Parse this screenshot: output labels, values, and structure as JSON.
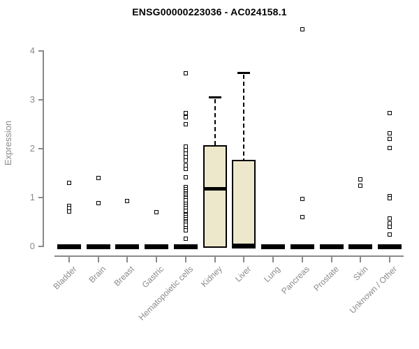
{
  "chart_data": {
    "type": "boxplot",
    "title": "ENSG00000223036 - AC024158.1",
    "ylabel": "Expression",
    "xlabel": "",
    "ylim": [
      0,
      4.6
    ],
    "yticks": [
      0,
      1,
      2,
      3,
      4
    ],
    "grid": false,
    "legend": "none",
    "categories": [
      "Bladder",
      "Brain",
      "Breast",
      "Gastric",
      "Hematopoietic cells",
      "Kidney",
      "Liver",
      "Lung",
      "Pancreas",
      "Prostate",
      "Skin",
      "Unknown / Other"
    ],
    "series": [
      {
        "category": "Bladder",
        "q1": 0,
        "median": 0,
        "q3": 0,
        "whisker_low": 0,
        "whisker_high": 0,
        "outliers": [
          1.3,
          0.83,
          0.78,
          0.72
        ]
      },
      {
        "category": "Brain",
        "q1": 0,
        "median": 0,
        "q3": 0,
        "whisker_low": 0,
        "whisker_high": 0,
        "outliers": [
          1.4,
          0.88
        ]
      },
      {
        "category": "Breast",
        "q1": 0,
        "median": 0,
        "q3": 0,
        "whisker_low": 0,
        "whisker_high": 0,
        "outliers": [
          0.93
        ]
      },
      {
        "category": "Gastric",
        "q1": 0,
        "median": 0,
        "q3": 0,
        "whisker_low": 0,
        "whisker_high": 0,
        "outliers": [
          0.7
        ]
      },
      {
        "category": "Hematopoietic cells",
        "q1": 0,
        "median": 0,
        "q3": 0,
        "whisker_low": 0,
        "whisker_high": 0,
        "outliers": [
          3.54,
          2.73,
          2.64,
          2.5,
          2.04,
          1.97,
          1.9,
          1.83,
          1.76,
          1.66,
          1.59,
          1.41,
          1.21,
          1.17,
          1.13,
          1.09,
          1.06,
          1.02,
          0.98,
          0.94,
          0.87,
          0.83,
          0.79,
          0.73,
          0.64,
          0.6,
          0.56,
          0.52,
          0.48,
          0.44,
          0.37,
          0.33,
          0.16
        ]
      },
      {
        "category": "Kidney",
        "q1": 0,
        "median": 1.19,
        "q3": 2.07,
        "whisker_low": 0,
        "whisker_high": 3.06,
        "outliers": []
      },
      {
        "category": "Liver",
        "q1": 0,
        "median": 0.02,
        "q3": 1.77,
        "whisker_low": 0,
        "whisker_high": 3.56,
        "outliers": []
      },
      {
        "category": "Lung",
        "q1": 0,
        "median": 0,
        "q3": 0,
        "whisker_low": 0,
        "whisker_high": 0,
        "outliers": []
      },
      {
        "category": "Pancreas",
        "q1": 0,
        "median": 0,
        "q3": 0,
        "whisker_low": 0,
        "whisker_high": 0,
        "outliers": [
          4.45,
          0.97,
          0.6
        ]
      },
      {
        "category": "Prostate",
        "q1": 0,
        "median": 0,
        "q3": 0,
        "whisker_low": 0,
        "whisker_high": 0,
        "outliers": []
      },
      {
        "category": "Skin",
        "q1": 0,
        "median": 0,
        "q3": 0,
        "whisker_low": 0,
        "whisker_high": 0,
        "outliers": [
          1.37,
          1.25
        ]
      },
      {
        "category": "Unknown / Other",
        "q1": 0,
        "median": 0,
        "q3": 0,
        "whisker_low": 0,
        "whisker_high": 0,
        "outliers": [
          2.73,
          2.32,
          2.2,
          2.02,
          1.03,
          0.98,
          0.57,
          0.47,
          0.4,
          0.24
        ]
      }
    ],
    "colors": {
      "box_fill": "#EDE7CB",
      "box_border": "#000000",
      "median": "#000000",
      "axis": "#8A8A8A",
      "tick_label": "#8A8A8A",
      "title": "#000000",
      "outlier_border": "#000000",
      "outlier_fill": "#FFFFFF",
      "background": "#FFFFFF"
    }
  }
}
